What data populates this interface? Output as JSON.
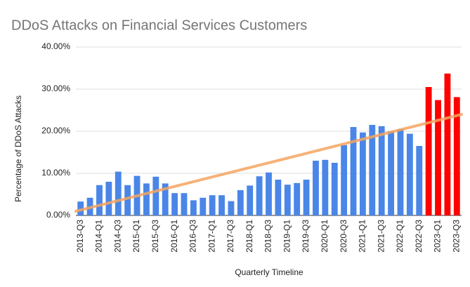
{
  "chart_data": {
    "type": "bar",
    "title": "DDoS Attacks on Financial Services Customers",
    "x_label": "Quarterly Timeline",
    "y_label": "Percentage of DDoS Attacks",
    "categories": [
      "2013-Q3",
      null,
      "2014-Q1",
      null,
      "2014-Q3",
      null,
      "2015-Q1",
      null,
      "2015-Q3",
      null,
      "2016-Q1",
      null,
      "2016-Q3",
      null,
      "2017-Q1",
      null,
      "2017-Q3",
      null,
      "2018-Q1",
      null,
      "2018-Q3",
      null,
      "2019-Q1",
      null,
      "2019-Q3",
      null,
      "2020-Q1",
      null,
      "2020-Q3",
      null,
      "2021-Q1",
      null,
      "2021-Q3",
      null,
      "2022-Q1",
      null,
      "2022-Q3",
      null,
      "2023-Q1",
      null,
      "2023-Q3"
    ],
    "values": [
      3.3,
      4.2,
      7.2,
      8.0,
      10.4,
      7.2,
      9.4,
      7.6,
      9.2,
      7.6,
      5.3,
      5.3,
      3.6,
      4.2,
      4.8,
      4.8,
      3.4,
      6.0,
      7.1,
      9.3,
      10.2,
      8.5,
      7.3,
      7.7,
      8.5,
      13.0,
      13.2,
      12.5,
      16.7,
      21.0,
      19.7,
      21.5,
      21.2,
      20.0,
      20.5,
      19.4,
      16.5,
      30.5,
      27.4,
      33.7,
      28.1
    ],
    "colors": [
      "#4a86e8",
      "#4a86e8",
      "#4a86e8",
      "#4a86e8",
      "#4a86e8",
      "#4a86e8",
      "#4a86e8",
      "#4a86e8",
      "#4a86e8",
      "#4a86e8",
      "#4a86e8",
      "#4a86e8",
      "#4a86e8",
      "#4a86e8",
      "#4a86e8",
      "#4a86e8",
      "#4a86e8",
      "#4a86e8",
      "#4a86e8",
      "#4a86e8",
      "#4a86e8",
      "#4a86e8",
      "#4a86e8",
      "#4a86e8",
      "#4a86e8",
      "#4a86e8",
      "#4a86e8",
      "#4a86e8",
      "#4a86e8",
      "#4a86e8",
      "#4a86e8",
      "#4a86e8",
      "#4a86e8",
      "#4a86e8",
      "#4a86e8",
      "#4a86e8",
      "#4a86e8",
      "#ff0000",
      "#ff0000",
      "#ff0000",
      "#ff0000"
    ],
    "trendline": {
      "color": "#f4a460",
      "values": [
        1.0,
        24.0
      ]
    },
    "ylim": [
      0,
      40
    ],
    "yticks": [
      {
        "value": 0,
        "label": "0.00%"
      },
      {
        "value": 10,
        "label": "10.00%"
      },
      {
        "value": 20,
        "label": "20.00%"
      },
      {
        "value": 30,
        "label": "30.00%"
      },
      {
        "value": 40,
        "label": "40.00%"
      }
    ],
    "grid": true
  }
}
